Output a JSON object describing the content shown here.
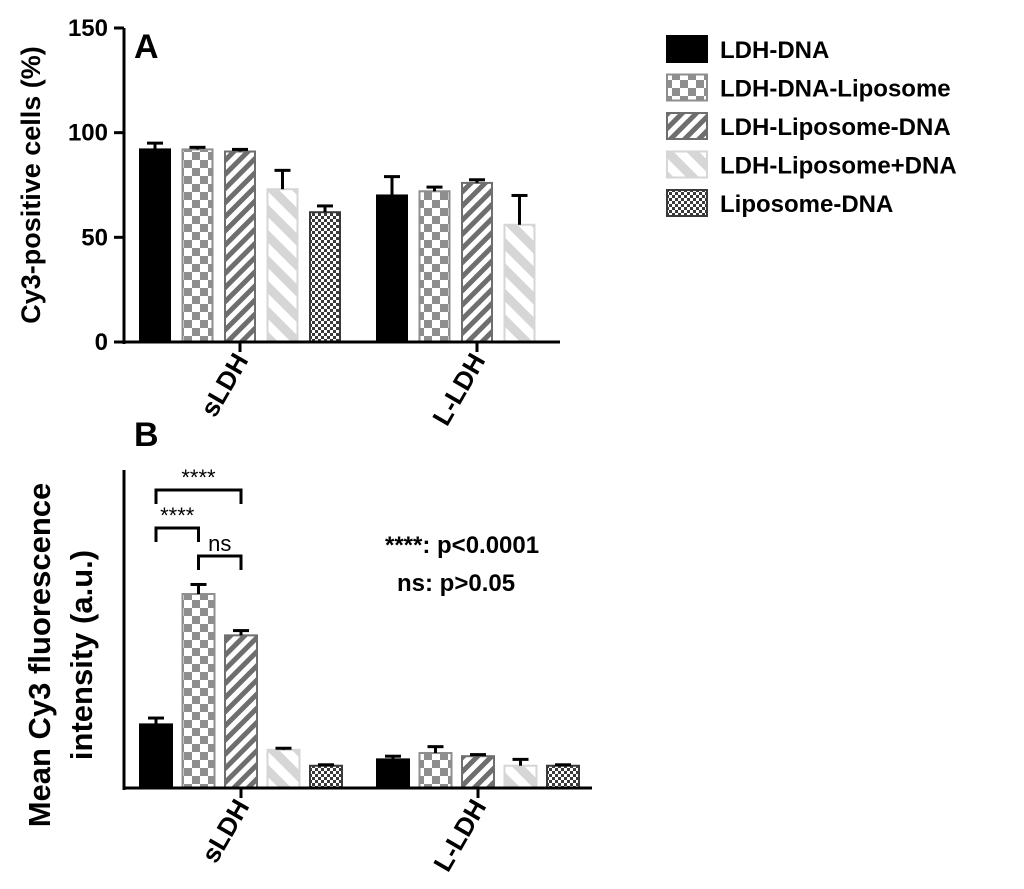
{
  "chart_data": [
    {
      "panel": "A",
      "type": "bar",
      "ylabel": "Cy3-positive cells (%)",
      "ylim": [
        0,
        150
      ],
      "yticks": [
        0,
        50,
        100,
        150
      ],
      "categories": [
        "sLDH",
        "L-LDH"
      ],
      "series": [
        {
          "name": "LDH-DNA",
          "values": [
            92,
            70
          ],
          "errors": [
            3,
            9
          ]
        },
        {
          "name": "LDH-DNA-Liposome",
          "values": [
            92,
            72
          ],
          "errors": [
            1,
            2
          ]
        },
        {
          "name": "LDH-Liposome-DNA",
          "values": [
            91,
            76
          ],
          "errors": [
            1,
            1.5
          ]
        },
        {
          "name": "LDH-Liposome+DNA",
          "values": [
            73,
            56
          ],
          "errors": [
            9,
            14
          ]
        },
        {
          "name": "Liposome-DNA",
          "values": [
            62,
            null
          ],
          "errors": [
            3,
            null
          ]
        }
      ],
      "grid": false
    },
    {
      "panel": "B",
      "type": "bar",
      "ylabel": "Mean Cy3 fluorescence intensity (a.u.)",
      "ylabel_lines": [
        "Mean Cy3 fluorescence",
        "intensity (a.u.)"
      ],
      "ylim": [
        0,
        100
      ],
      "yticks_shown": false,
      "categories": [
        "sLDH",
        "L-LDH"
      ],
      "series": [
        {
          "name": "LDH-DNA",
          "values": [
            20,
            9
          ],
          "errors": [
            2,
            1
          ]
        },
        {
          "name": "LDH-DNA-Liposome",
          "values": [
            61,
            11
          ],
          "errors": [
            3,
            2
          ]
        },
        {
          "name": "LDH-Liposome-DNA",
          "values": [
            48,
            10
          ],
          "errors": [
            1.5,
            0.5
          ]
        },
        {
          "name": "LDH-Liposome+DNA",
          "values": [
            12,
            7
          ],
          "errors": [
            0.5,
            2
          ]
        },
        {
          "name": "Liposome-DNA",
          "values": [
            7,
            7
          ],
          "errors": [
            0.3,
            0.3
          ]
        }
      ],
      "significance": [
        {
          "label": "****",
          "between": [
            "LDH-DNA",
            "LDH-Liposome-DNA"
          ],
          "category": "sLDH"
        },
        {
          "label": "****",
          "between": [
            "LDH-DNA",
            "LDH-DNA-Liposome"
          ],
          "category": "sLDH"
        },
        {
          "label": "ns",
          "between": [
            "LDH-DNA-Liposome",
            "LDH-Liposome-DNA"
          ],
          "category": "sLDH"
        }
      ],
      "annotations": [
        "****: p<0.0001",
        "ns: p>0.05"
      ],
      "grid": false
    }
  ],
  "legend": {
    "placement": "top-right",
    "entries": [
      "LDH-DNA",
      "LDH-DNA-Liposome",
      "LDH-Liposome-DNA",
      "LDH-Liposome+DNA",
      "Liposome-DNA"
    ]
  },
  "panel_labels": [
    "A",
    "B"
  ]
}
